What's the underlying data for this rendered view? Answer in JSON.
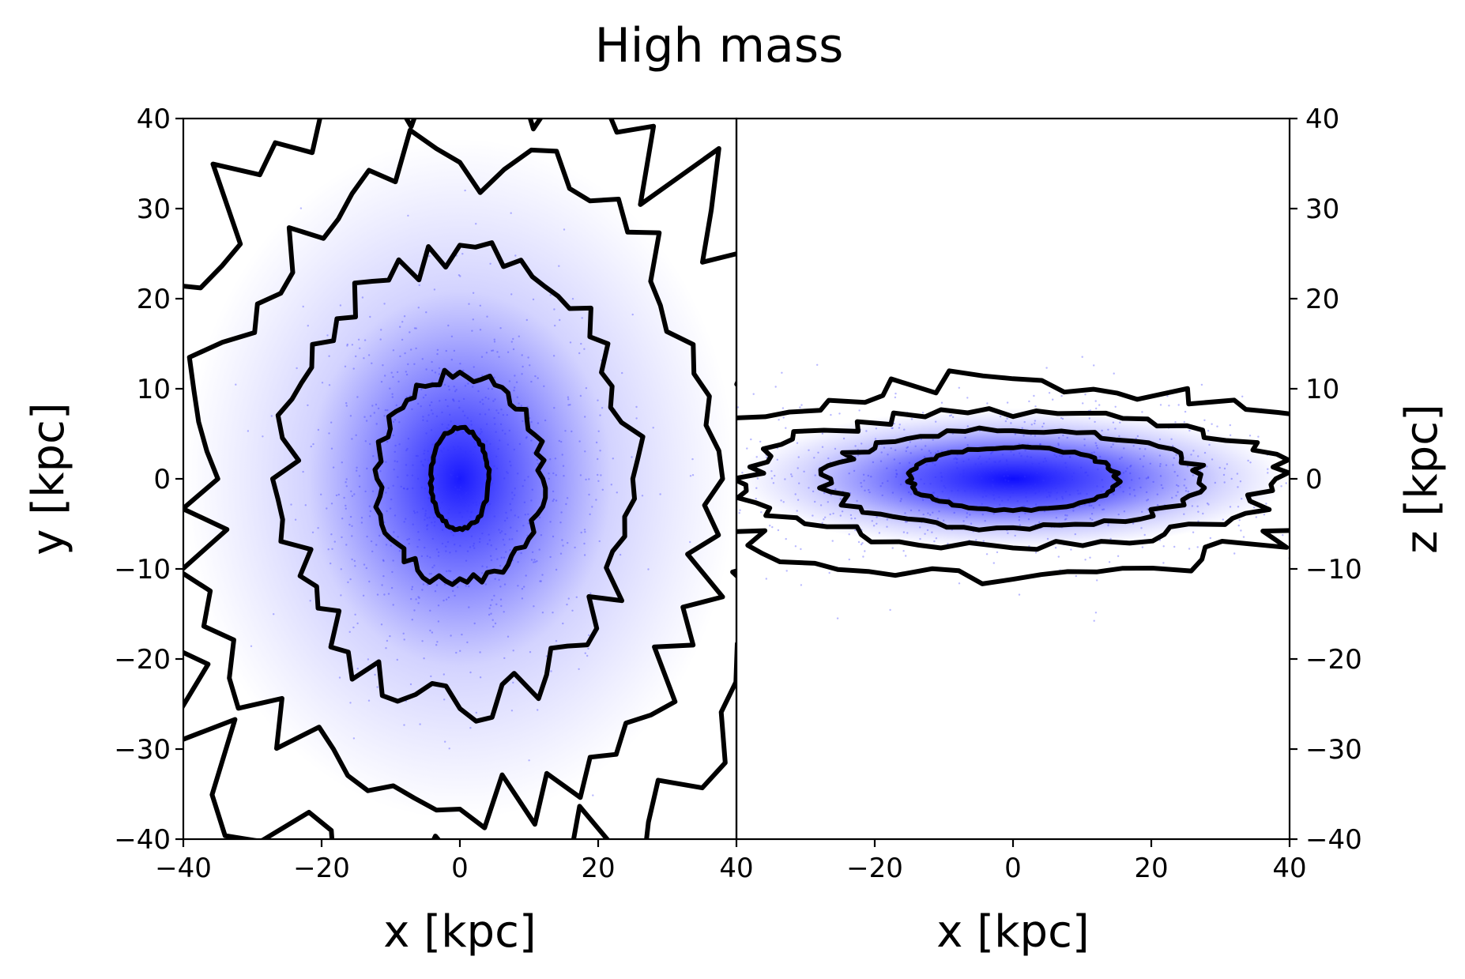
{
  "figure": {
    "title": "High mass"
  },
  "chart_data": [
    {
      "type": "scatter",
      "panel": "face-on",
      "title": "High mass",
      "xlabel": "x [kpc]",
      "ylabel": "y [kpc]",
      "xlim": [
        -40,
        40
      ],
      "ylim": [
        -40,
        40
      ],
      "x_ticks": [
        -40,
        -20,
        0,
        20,
        40
      ],
      "y_ticks": [
        -40,
        -30,
        -20,
        -10,
        0,
        10,
        20,
        30,
        40
      ],
      "x_tick_labels": [
        "−40",
        "−20",
        "0",
        "20",
        "40"
      ],
      "y_tick_labels": [
        "−40",
        "−30",
        "−20",
        "−10",
        "0",
        "10",
        "20",
        "30",
        "40"
      ],
      "ylabel_side": "left",
      "point_color": "#0000ff",
      "contour_color": "#000000",
      "density_center": [
        0,
        0
      ],
      "contours_rx_ry_kpc": [
        [
          4.2,
          5.6
        ],
        [
          12,
          11.5
        ],
        [
          25,
          25
        ],
        [
          38,
          36
        ],
        [
          47,
          46
        ]
      ]
    },
    {
      "type": "scatter",
      "panel": "edge-on",
      "xlabel": "x [kpc]",
      "ylabel": "z [kpc]",
      "xlim": [
        -40,
        40
      ],
      "ylim": [
        -40,
        40
      ],
      "x_ticks": [
        -20,
        0,
        20,
        40
      ],
      "y_ticks": [
        -40,
        -30,
        -20,
        -10,
        0,
        10,
        20,
        30,
        40
      ],
      "x_tick_labels": [
        "−20",
        "0",
        "20",
        "40"
      ],
      "y_tick_labels": [
        "−40",
        "−30",
        "−20",
        "−10",
        "0",
        "10",
        "20",
        "30",
        "40"
      ],
      "ylabel_side": "right",
      "point_color": "#0000ff",
      "contour_color": "#000000",
      "density_center": [
        0,
        0
      ],
      "contours_rx_ry_kpc": [
        [
          15,
          3.5
        ],
        [
          27,
          5.5
        ],
        [
          38,
          7.5
        ],
        [
          48,
          11
        ]
      ]
    }
  ]
}
